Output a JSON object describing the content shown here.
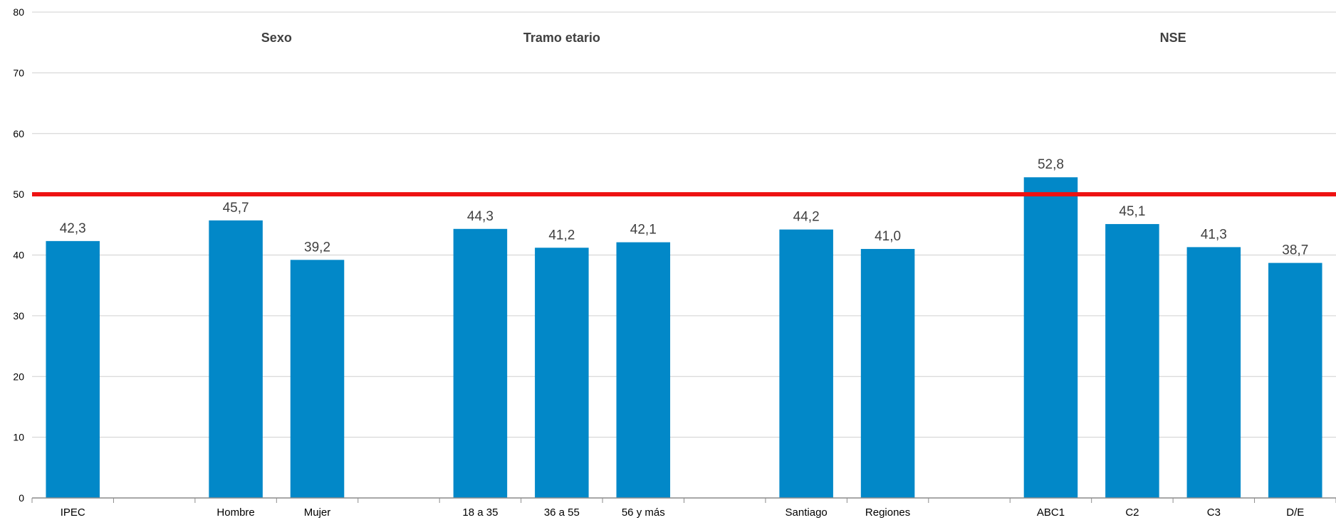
{
  "chart_data": {
    "type": "bar",
    "categories": [
      "IPEC",
      "",
      "Hombre",
      "Mujer",
      "",
      "18 a 35",
      "36 a 55",
      "56 y más",
      "",
      "Santiago",
      "Regiones",
      "",
      "ABC1",
      "C2",
      "C3",
      "D/E"
    ],
    "series": [
      {
        "values": [
          42.3,
          null,
          45.7,
          39.2,
          null,
          44.3,
          41.2,
          42.1,
          null,
          44.2,
          41.0,
          null,
          52.8,
          45.1,
          41.3,
          38.7
        ]
      }
    ],
    "value_labels": [
      "42,3",
      "",
      "45,7",
      "39,2",
      "",
      "44,3",
      "41,2",
      "42,1",
      "",
      "44,2",
      "41,0",
      "",
      "52,8",
      "45,1",
      "41,3",
      "38,7"
    ],
    "group_labels": [
      {
        "text": "Sexo",
        "from": 2,
        "to": 3
      },
      {
        "text": "Tramo etario",
        "from": 5,
        "to": 7
      },
      {
        "text": "NSE",
        "from": 12,
        "to": 15
      }
    ],
    "reference_line": {
      "value": 50,
      "color": "#ee1111"
    },
    "ylim": [
      0,
      80
    ],
    "yticks": [
      0,
      10,
      20,
      30,
      40,
      50,
      60,
      70,
      80
    ],
    "xlabel": "",
    "ylabel": "",
    "grid": true,
    "bar_color": "#0288c8",
    "gridline_color": "#d0d0d0",
    "legend": "none"
  }
}
